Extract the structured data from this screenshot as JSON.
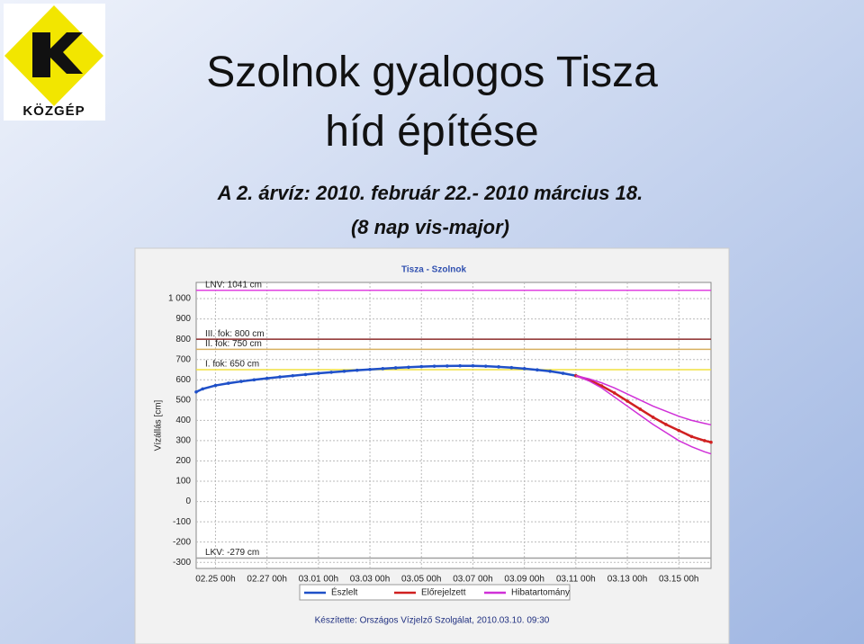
{
  "slide": {
    "logo": "KÖZGÉP",
    "title": [
      "Szolnok gyalogos Tisza",
      "híd építése"
    ],
    "subtitle": [
      "A 2. árvíz: 2010. február 22.- 2010 március 18.",
      "(8 nap vis-major)"
    ]
  },
  "chart_data": {
    "type": "line",
    "title": "Tisza - Szolnok",
    "y_label": "Vízállás [cm]",
    "footer": "Készítette: Országos Vízjelző Szolgálat, 2010.03.10. 09:30",
    "xlim": [
      "02.24 06h",
      "03.16 06h"
    ],
    "xticks": [
      "02.25 00h",
      "02.27 00h",
      "03.01 00h",
      "03.03 00h",
      "03.05 00h",
      "03.07 00h",
      "03.09 00h",
      "03.11 00h",
      "03.13 00h",
      "03.15 00h"
    ],
    "ylim": [
      -330,
      1080
    ],
    "yticks": [
      {
        "value": 1000,
        "label": "1 000"
      },
      900,
      800,
      700,
      600,
      500,
      400,
      300,
      200,
      100,
      0,
      -100,
      -200,
      -300
    ],
    "grid": true,
    "reference_lines": [
      {
        "label": "LNV: 1041 cm",
        "value": 1041,
        "color": "#e040e0"
      },
      {
        "label": "III. fok: 800 cm",
        "value": 800,
        "color": "#8b2a2a"
      },
      {
        "label": "II. fok: 750 cm",
        "value": 750,
        "color": "#d8b060"
      },
      {
        "label": "I. fok: 650 cm",
        "value": 650,
        "color": "#f0e040"
      },
      {
        "label": "LKV: -279 cm",
        "value": -279,
        "color": "#a0a0a0"
      }
    ],
    "series": [
      {
        "name": "Észlelt",
        "color": "#1f50c8",
        "x": [
          "02.24 06h",
          "02.24 12h",
          "02.25 00h",
          "02.25 12h",
          "02.26 00h",
          "02.26 12h",
          "02.27 00h",
          "02.27 12h",
          "02.28 00h",
          "02.28 12h",
          "03.01 00h",
          "03.01 12h",
          "03.02 00h",
          "03.02 12h",
          "03.03 00h",
          "03.03 12h",
          "03.04 00h",
          "03.04 12h",
          "03.05 00h",
          "03.05 12h",
          "03.06 00h",
          "03.06 12h",
          "03.07 00h",
          "03.07 12h",
          "03.08 00h",
          "03.08 12h",
          "03.09 00h",
          "03.09 12h",
          "03.10 00h",
          "03.10 12h",
          "03.11 00h"
        ],
        "values": [
          540,
          555,
          572,
          583,
          592,
          600,
          607,
          614,
          620,
          626,
          632,
          637,
          642,
          647,
          651,
          655,
          659,
          662,
          665,
          667,
          668,
          669,
          669,
          667,
          664,
          660,
          655,
          649,
          642,
          632,
          620
        ]
      },
      {
        "name": "Előrejelzett",
        "color": "#d02020",
        "x": [
          "03.11 00h",
          "03.11 12h",
          "03.12 00h",
          "03.12 12h",
          "03.13 00h",
          "03.13 12h",
          "03.14 00h",
          "03.14 12h",
          "03.15 00h",
          "03.15 12h",
          "03.16 00h",
          "03.16 06h"
        ],
        "values": [
          620,
          600,
          570,
          535,
          495,
          455,
          415,
          380,
          350,
          320,
          300,
          292
        ]
      },
      {
        "name": "Hibatartomány",
        "color": "#d030d8",
        "x": [
          "03.11 00h",
          "03.11 12h",
          "03.12 00h",
          "03.12 12h",
          "03.13 00h",
          "03.13 12h",
          "03.14 00h",
          "03.14 12h",
          "03.15 00h",
          "03.15 12h",
          "03.16 00h",
          "03.16 06h"
        ],
        "high": [
          620,
          605,
          585,
          560,
          530,
          500,
          470,
          445,
          420,
          400,
          385,
          378
        ],
        "low": [
          620,
          595,
          560,
          515,
          470,
          425,
          380,
          340,
          300,
          270,
          245,
          235
        ]
      }
    ]
  }
}
